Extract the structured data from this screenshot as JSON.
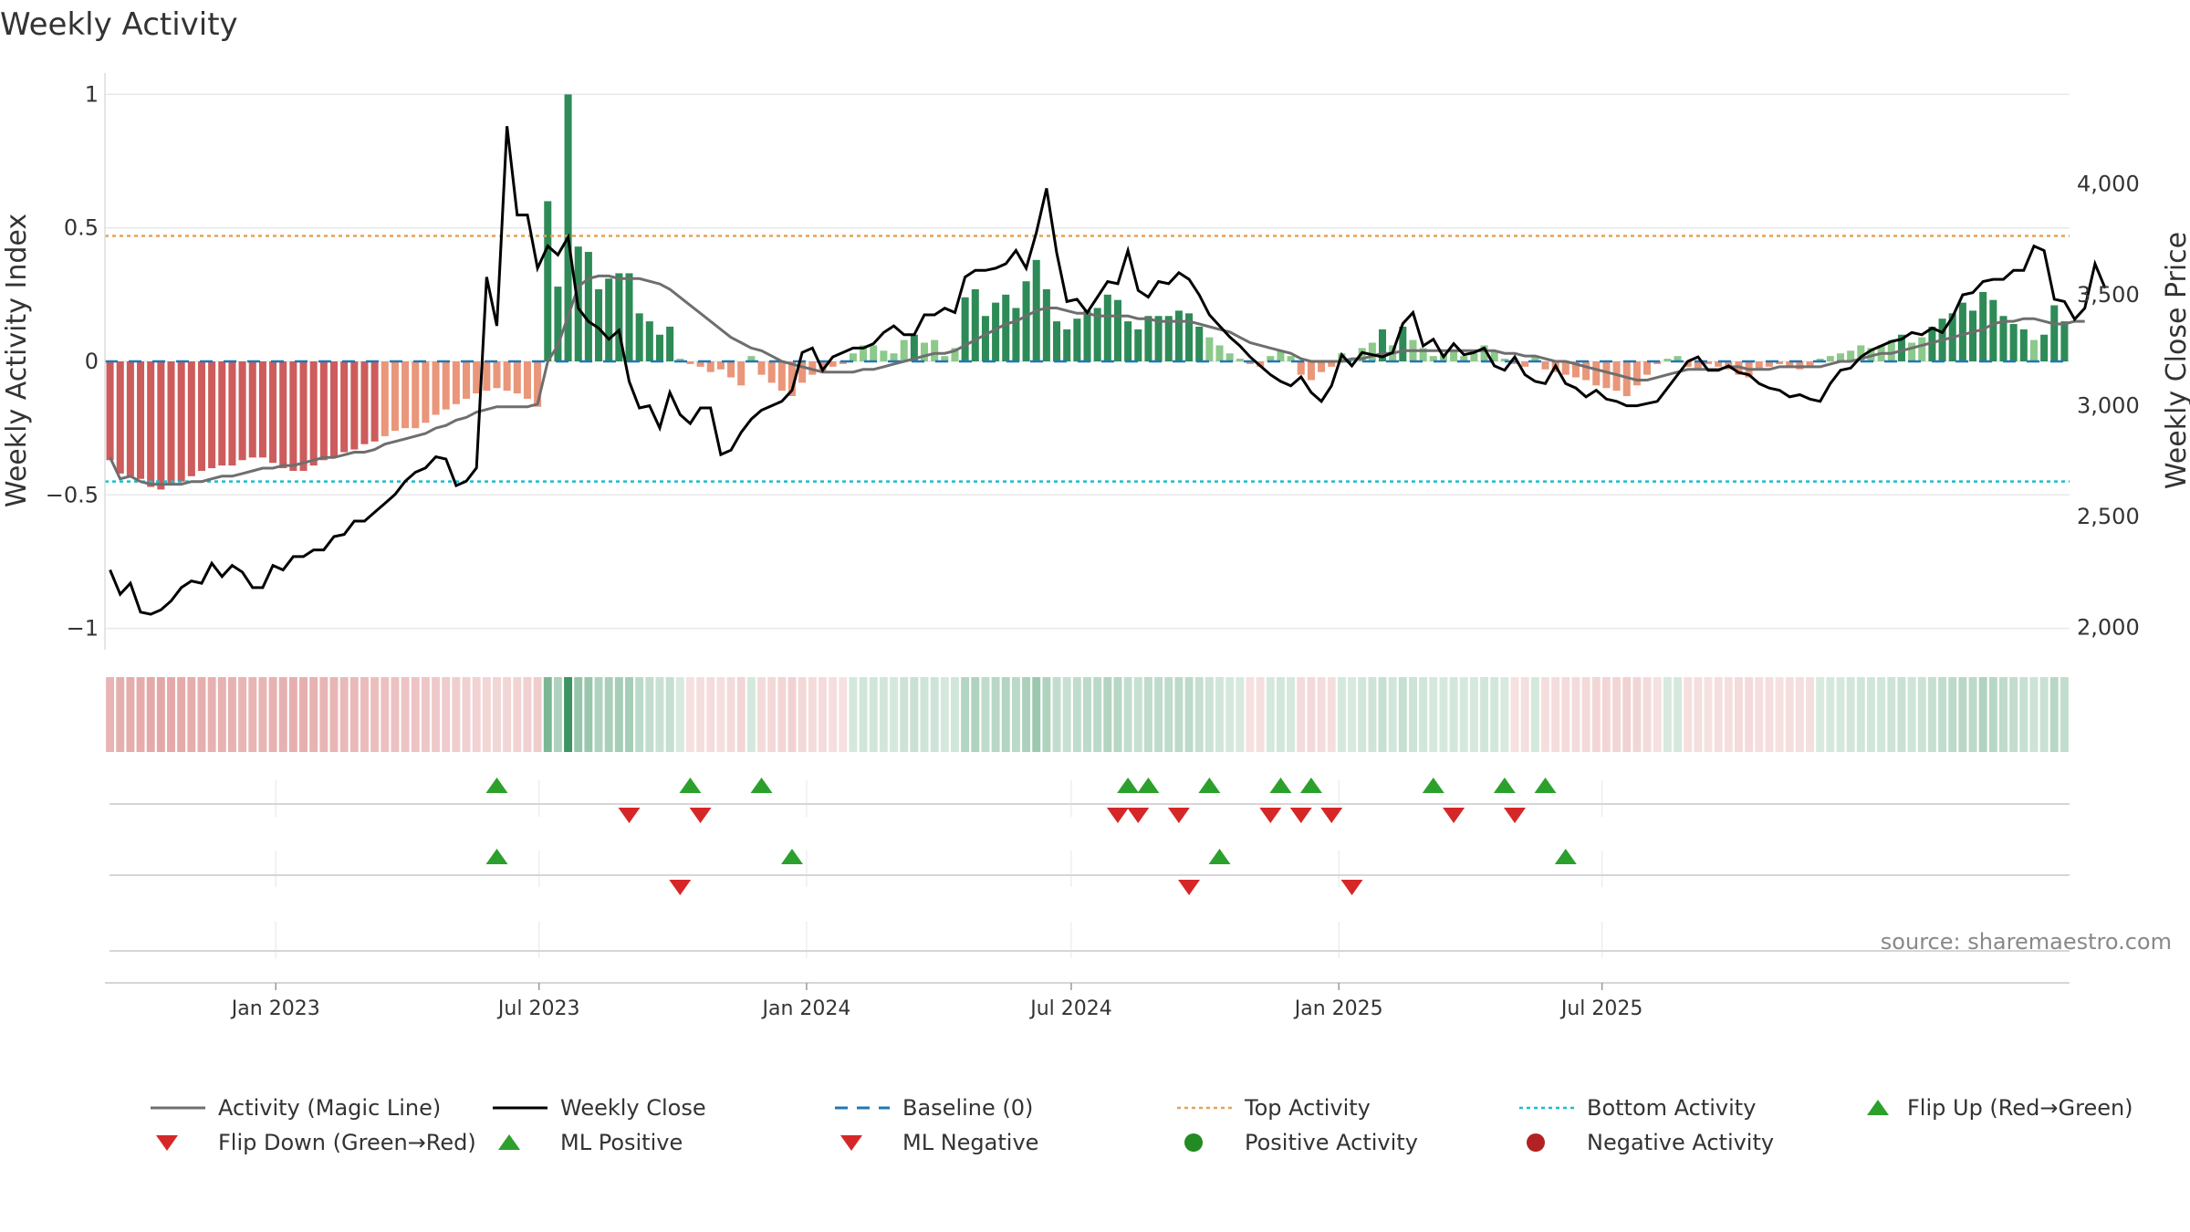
{
  "chart_data": {
    "type": "bar",
    "title": "Weekly Activity",
    "ylabel": "Weekly Activity Index",
    "y2label": "Weekly Close Price",
    "ylim": [
      -1.08,
      1.08
    ],
    "y2lim": [
      1900,
      4500
    ],
    "yticks": [
      {
        "v": 1,
        "label": "1"
      },
      {
        "v": 0.5,
        "label": "0.5"
      },
      {
        "v": 0,
        "label": "0"
      },
      {
        "v": -0.5,
        "label": "−0.5"
      },
      {
        "v": -1,
        "label": "−1"
      }
    ],
    "y2ticks": [
      {
        "v": 2000,
        "label": "2,000"
      },
      {
        "v": 2500,
        "label": "2,500"
      },
      {
        "v": 3000,
        "label": "3,000"
      },
      {
        "v": 3500,
        "label": "3,500"
      },
      {
        "v": 4000,
        "label": "4,000"
      }
    ],
    "x_dates": [
      "Jan 2023",
      "Jul 2023",
      "Jan 2024",
      "Jul 2024",
      "Jan 2025",
      "Jul 2025"
    ],
    "week_start": "2022-09-09",
    "top_activity": 0.47,
    "bottom_activity": -0.45,
    "baseline": 0,
    "activity": [
      -0.37,
      -0.42,
      -0.43,
      -0.44,
      -0.47,
      -0.48,
      -0.46,
      -0.45,
      -0.43,
      -0.41,
      -0.4,
      -0.39,
      -0.39,
      -0.37,
      -0.36,
      -0.36,
      -0.38,
      -0.4,
      -0.41,
      -0.41,
      -0.39,
      -0.37,
      -0.36,
      -0.34,
      -0.33,
      -0.31,
      -0.3,
      -0.28,
      -0.26,
      -0.25,
      -0.25,
      -0.23,
      -0.2,
      -0.18,
      -0.16,
      -0.14,
      -0.12,
      -0.11,
      -0.1,
      -0.11,
      -0.12,
      -0.14,
      -0.17,
      0.6,
      0.28,
      1.0,
      0.43,
      0.41,
      0.27,
      0.31,
      0.33,
      0.33,
      0.18,
      0.15,
      0.1,
      0.13,
      0.01,
      -0.01,
      -0.02,
      -0.04,
      -0.03,
      -0.06,
      -0.09,
      0.02,
      -0.05,
      -0.08,
      -0.11,
      -0.13,
      -0.08,
      -0.05,
      -0.04,
      -0.02,
      -0.01,
      0.03,
      0.06,
      0.06,
      0.04,
      0.03,
      0.08,
      0.1,
      0.07,
      0.08,
      0.02,
      0.05,
      0.24,
      0.27,
      0.17,
      0.22,
      0.25,
      0.2,
      0.3,
      0.38,
      0.27,
      0.15,
      0.12,
      0.16,
      0.19,
      0.2,
      0.25,
      0.23,
      0.15,
      0.12,
      0.17,
      0.17,
      0.17,
      0.19,
      0.18,
      0.13,
      0.09,
      0.06,
      0.03,
      0.01,
      -0.01,
      -0.02,
      0.02,
      0.04,
      0.02,
      -0.05,
      -0.07,
      -0.04,
      -0.02,
      0.03,
      0.01,
      0.05,
      0.07,
      0.12,
      0.06,
      0.13,
      0.08,
      0.05,
      0.02,
      0.03,
      0.04,
      0.02,
      0.03,
      0.06,
      0.04,
      0.01,
      -0.01,
      -0.02,
      0.02,
      -0.03,
      -0.04,
      -0.05,
      -0.06,
      -0.07,
      -0.09,
      -0.1,
      -0.11,
      -0.13,
      -0.09,
      -0.05,
      -0.01,
      0.01,
      0.02,
      -0.02,
      -0.03,
      -0.01,
      -0.02,
      -0.03,
      -0.05,
      -0.06,
      -0.03,
      -0.02,
      -0.01,
      -0.02,
      -0.03,
      -0.02,
      0.01,
      0.02,
      0.03,
      0.04,
      0.06,
      0.05,
      0.06,
      0.08,
      0.1,
      0.07,
      0.09,
      0.13,
      0.16,
      0.18,
      0.22,
      0.19,
      0.26,
      0.23,
      0.17,
      0.14,
      0.12,
      0.08,
      0.1,
      0.21,
      0.15
    ],
    "magic_line": [
      -0.36,
      -0.44,
      -0.43,
      -0.45,
      -0.46,
      -0.46,
      -0.46,
      -0.46,
      -0.45,
      -0.45,
      -0.44,
      -0.43,
      -0.43,
      -0.42,
      -0.41,
      -0.4,
      -0.4,
      -0.39,
      -0.39,
      -0.38,
      -0.37,
      -0.36,
      -0.36,
      -0.35,
      -0.34,
      -0.34,
      -0.33,
      -0.31,
      -0.3,
      -0.29,
      -0.28,
      -0.27,
      -0.25,
      -0.24,
      -0.22,
      -0.21,
      -0.19,
      -0.18,
      -0.17,
      -0.17,
      -0.17,
      -0.17,
      -0.16,
      0.0,
      0.06,
      0.17,
      0.28,
      0.31,
      0.32,
      0.32,
      0.31,
      0.31,
      0.31,
      0.3,
      0.29,
      0.27,
      0.24,
      0.21,
      0.18,
      0.15,
      0.12,
      0.09,
      0.07,
      0.05,
      0.04,
      0.02,
      0.0,
      -0.01,
      -0.02,
      -0.03,
      -0.04,
      -0.04,
      -0.04,
      -0.04,
      -0.03,
      -0.03,
      -0.02,
      -0.01,
      0.0,
      0.01,
      0.02,
      0.03,
      0.03,
      0.04,
      0.06,
      0.08,
      0.1,
      0.12,
      0.14,
      0.15,
      0.17,
      0.19,
      0.2,
      0.2,
      0.19,
      0.18,
      0.18,
      0.17,
      0.17,
      0.17,
      0.17,
      0.16,
      0.16,
      0.15,
      0.15,
      0.15,
      0.15,
      0.14,
      0.13,
      0.12,
      0.11,
      0.09,
      0.07,
      0.06,
      0.05,
      0.04,
      0.03,
      0.01,
      0.0,
      0.0,
      0.0,
      0.0,
      0.01,
      0.01,
      0.02,
      0.03,
      0.03,
      0.04,
      0.04,
      0.04,
      0.04,
      0.04,
      0.04,
      0.04,
      0.04,
      0.04,
      0.04,
      0.03,
      0.03,
      0.02,
      0.02,
      0.01,
      0.0,
      0.0,
      -0.01,
      -0.02,
      -0.03,
      -0.04,
      -0.05,
      -0.06,
      -0.07,
      -0.07,
      -0.06,
      -0.05,
      -0.04,
      -0.03,
      -0.03,
      -0.03,
      -0.03,
      -0.02,
      -0.02,
      -0.03,
      -0.03,
      -0.03,
      -0.02,
      -0.02,
      -0.02,
      -0.02,
      -0.02,
      -0.01,
      0.0,
      0.0,
      0.01,
      0.02,
      0.03,
      0.03,
      0.04,
      0.05,
      0.06,
      0.07,
      0.08,
      0.09,
      0.1,
      0.11,
      0.12,
      0.14,
      0.15,
      0.15,
      0.16,
      0.16,
      0.15,
      0.14,
      0.14,
      0.15,
      0.15
    ],
    "weekly_close": [
      2260,
      2150,
      2200,
      2070,
      2060,
      2080,
      2120,
      2180,
      2210,
      2200,
      2290,
      2230,
      2280,
      2250,
      2180,
      2180,
      2280,
      2260,
      2320,
      2320,
      2350,
      2350,
      2410,
      2420,
      2480,
      2480,
      2520,
      2560,
      2600,
      2660,
      2700,
      2720,
      2770,
      2760,
      2640,
      2660,
      2720,
      3580,
      3360,
      4260,
      3860,
      3860,
      3620,
      3720,
      3680,
      3760,
      3440,
      3380,
      3350,
      3300,
      3340,
      3110,
      2990,
      3000,
      2900,
      3060,
      2960,
      2920,
      2990,
      2990,
      2780,
      2800,
      2880,
      2940,
      2980,
      3000,
      3020,
      3070,
      3240,
      3260,
      3160,
      3220,
      3240,
      3260,
      3260,
      3280,
      3330,
      3360,
      3320,
      3320,
      3410,
      3410,
      3440,
      3420,
      3580,
      3610,
      3610,
      3620,
      3640,
      3700,
      3620,
      3780,
      3980,
      3690,
      3470,
      3480,
      3420,
      3490,
      3560,
      3550,
      3700,
      3520,
      3490,
      3560,
      3550,
      3600,
      3570,
      3500,
      3410,
      3360,
      3310,
      3270,
      3220,
      3180,
      3140,
      3110,
      3090,
      3130,
      3060,
      3020,
      3090,
      3230,
      3180,
      3240,
      3230,
      3220,
      3240,
      3370,
      3420,
      3270,
      3300,
      3220,
      3280,
      3230,
      3240,
      3260,
      3180,
      3160,
      3220,
      3140,
      3110,
      3100,
      3180,
      3100,
      3080,
      3040,
      3070,
      3030,
      3020,
      3000,
      3000,
      3010,
      3020,
      3080,
      3140,
      3200,
      3220,
      3160,
      3160,
      3180,
      3150,
      3140,
      3100,
      3080,
      3070,
      3040,
      3050,
      3030,
      3020,
      3100,
      3160,
      3170,
      3220,
      3250,
      3270,
      3290,
      3300,
      3330,
      3320,
      3350,
      3330,
      3400,
      3500,
      3510,
      3560,
      3570,
      3570,
      3610,
      3610,
      3720,
      3700,
      3480,
      3470,
      3390,
      3440,
      3640,
      3530
    ],
    "flip_up": [
      "2023-06-02",
      "2023-10-13",
      "2023-12-01",
      "2024-08-09",
      "2024-08-23",
      "2024-10-04",
      "2024-11-22",
      "2024-12-13",
      "2025-03-07",
      "2025-04-25",
      "2025-05-23"
    ],
    "flip_down": [
      "2023-09-01",
      "2023-10-20",
      "2024-08-02",
      "2024-08-16",
      "2024-09-13",
      "2024-11-15",
      "2024-12-06",
      "2024-12-27",
      "2025-03-21",
      "2025-05-02"
    ],
    "ml_positive": [
      "2023-06-02",
      "2023-12-22",
      "2024-10-11",
      "2025-06-06"
    ],
    "ml_negative": [
      "2023-10-06",
      "2024-09-20",
      "2025-01-10"
    ],
    "source_text": "source: sharemaestro.com",
    "colors": {
      "strong_pos": "#2e8b57",
      "weak_pos": "#8cc98a",
      "strong_neg": "#cd5c5c",
      "weak_neg": "#e9967a",
      "magic": "#6e6e6e",
      "close": "#000000",
      "baseline": "#1f77b4",
      "top": "#e3a25a",
      "bottom": "#17becf",
      "flip_up": "#2ca02c",
      "flip_down": "#d62728",
      "pos_dot": "#228b22",
      "neg_dot": "#b22222"
    },
    "legend": [
      {
        "key": "magic",
        "label": "Activity (Magic Line)"
      },
      {
        "key": "close",
        "label": "Weekly Close"
      },
      {
        "key": "baseline",
        "label": "Baseline (0)"
      },
      {
        "key": "top",
        "label": "Top Activity"
      },
      {
        "key": "bottom",
        "label": "Bottom Activity"
      },
      {
        "key": "flip_up",
        "label": "Flip Up (Red→Green)"
      },
      {
        "key": "flip_down",
        "label": "Flip Down (Green→Red)"
      },
      {
        "key": "ml_pos",
        "label": "ML Positive"
      },
      {
        "key": "ml_neg",
        "label": "ML Negative"
      },
      {
        "key": "pos_dot",
        "label": "Positive Activity"
      },
      {
        "key": "neg_dot",
        "label": "Negative Activity"
      }
    ]
  }
}
